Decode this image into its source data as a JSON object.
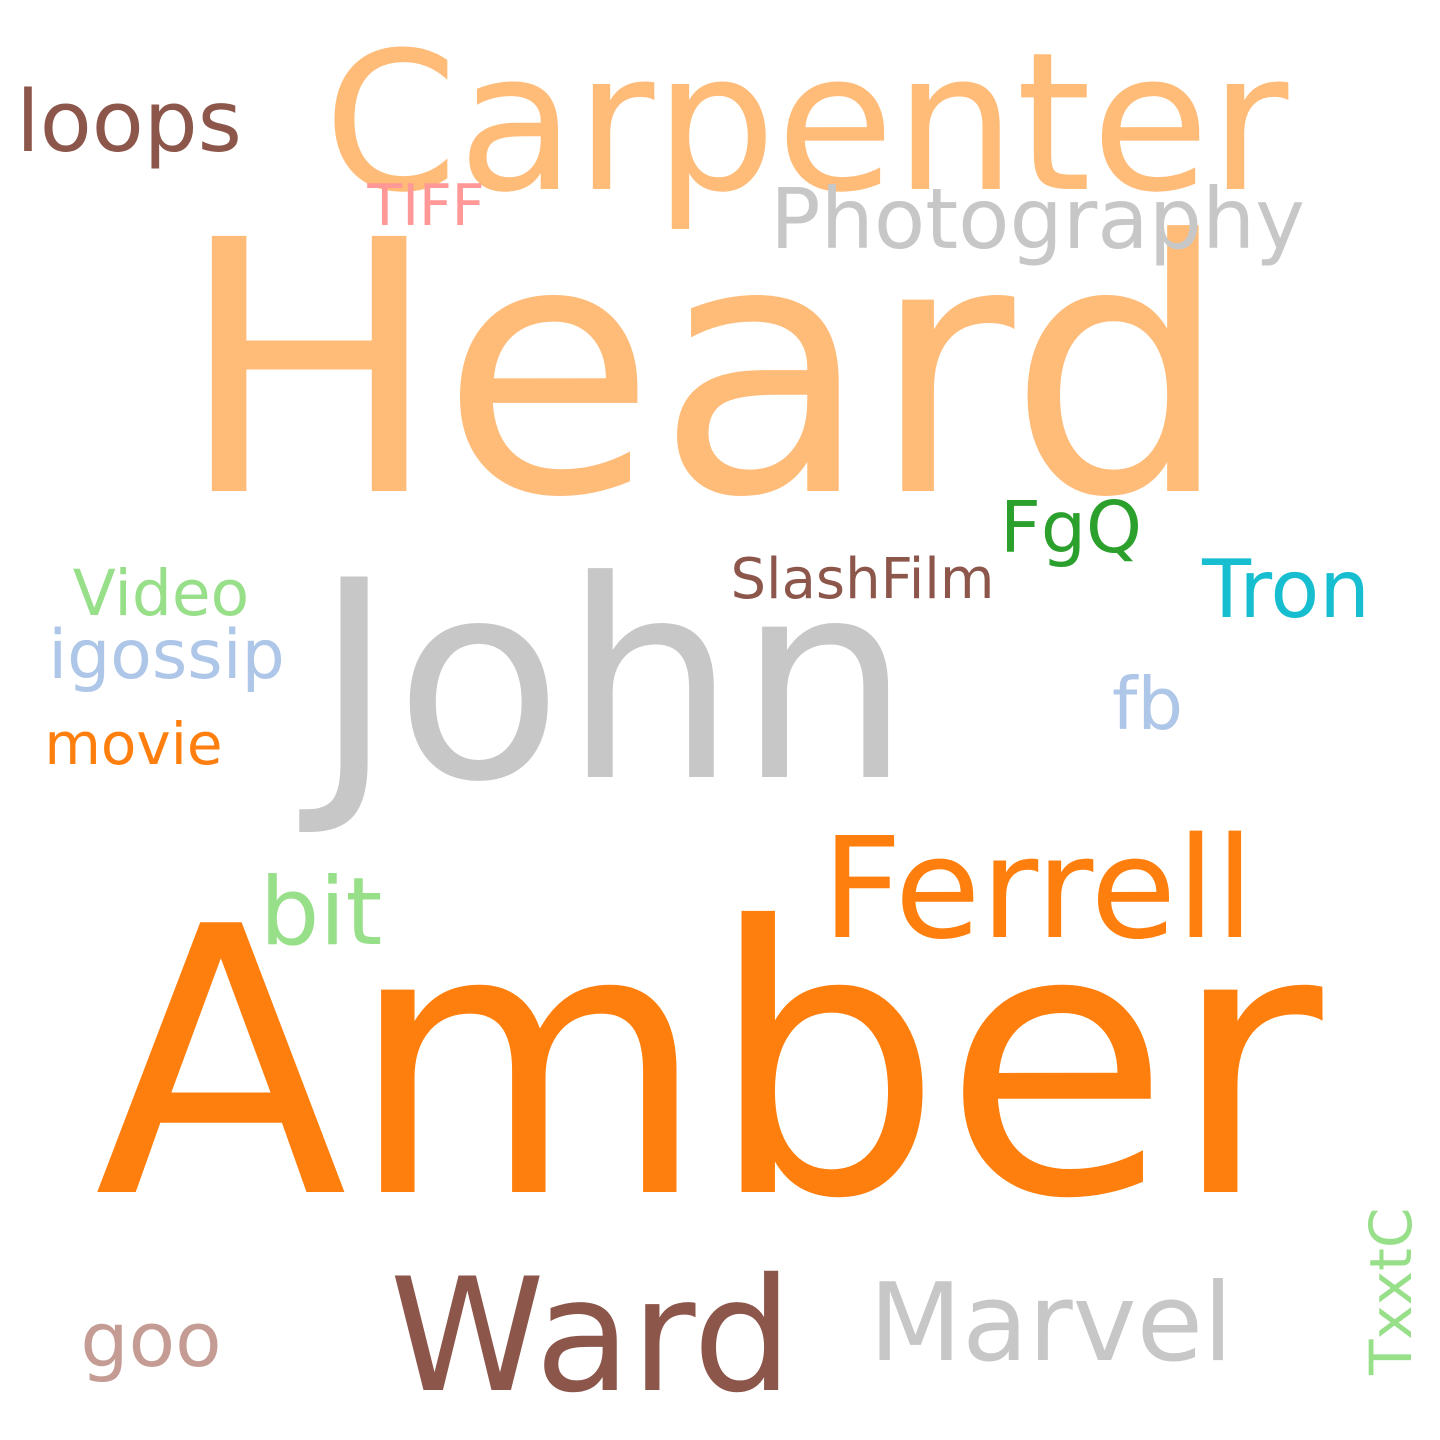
{
  "words": [
    {
      "id": "heard",
      "text": "Heard",
      "color": "#ffbb78"
    },
    {
      "id": "carpenter",
      "text": "Carpenter",
      "color": "#ffbb78"
    },
    {
      "id": "loops",
      "text": "loops",
      "color": "#8c564b"
    },
    {
      "id": "tiff",
      "text": "TIFF",
      "color": "#ff9896"
    },
    {
      "id": "photography",
      "text": "Photography",
      "color": "#c7c7c7"
    },
    {
      "id": "john",
      "text": "John",
      "color": "#c7c7c7"
    },
    {
      "id": "fgq",
      "text": "FgQ",
      "color": "#2ca02c"
    },
    {
      "id": "tron",
      "text": "Tron",
      "color": "#17becf"
    },
    {
      "id": "slashfilm",
      "text": "SlashFilm",
      "color": "#8c564b"
    },
    {
      "id": "video",
      "text": "Video",
      "color": "#98df8a"
    },
    {
      "id": "igossip",
      "text": "igossip",
      "color": "#aec7e8"
    },
    {
      "id": "fb",
      "text": "fb",
      "color": "#aec7e8"
    },
    {
      "id": "movie",
      "text": "movie",
      "color": "#ff7f0e"
    },
    {
      "id": "ferrell",
      "text": "Ferrell",
      "color": "#ff7f0e"
    },
    {
      "id": "bit",
      "text": "bit",
      "color": "#98df8a"
    },
    {
      "id": "amber",
      "text": "Amber",
      "color": "#ff7f0e"
    },
    {
      "id": "ward",
      "text": "Ward",
      "color": "#8c564b"
    },
    {
      "id": "marvel",
      "text": "Marvel",
      "color": "#c7c7c7"
    },
    {
      "id": "goo",
      "text": "goo",
      "color": "#c49c94"
    },
    {
      "id": "txxtc",
      "text": "TxxtC",
      "color": "#98df8a"
    }
  ]
}
